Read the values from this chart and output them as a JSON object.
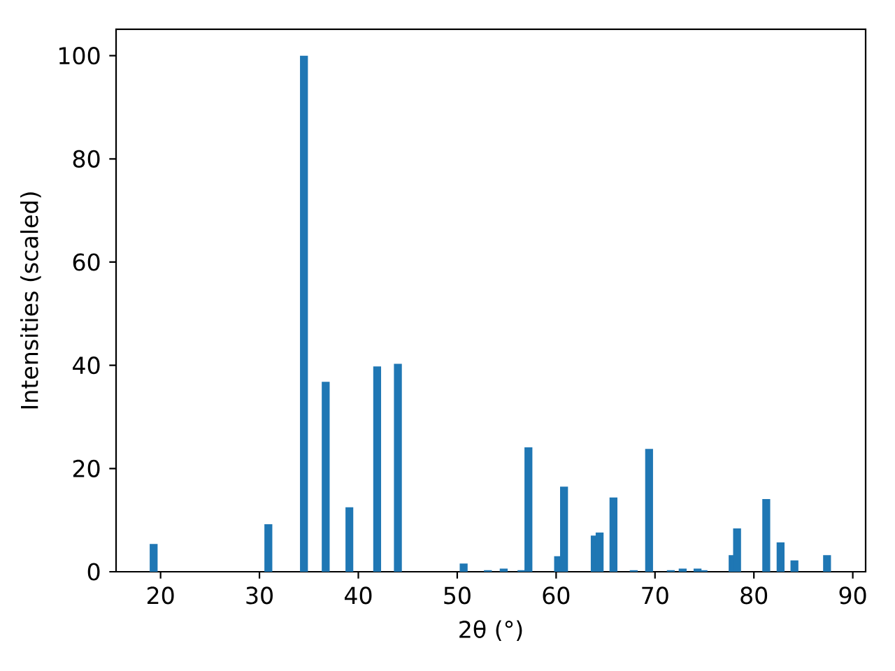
{
  "chart_data": {
    "type": "bar",
    "xlabel": "2θ (°)",
    "ylabel": "Intensities (scaled)",
    "x": [
      19.3,
      30.9,
      34.5,
      36.7,
      39.1,
      41.9,
      44.0,
      50.65,
      53.1,
      54.7,
      56.5,
      57.2,
      60.2,
      60.8,
      63.9,
      64.4,
      65.8,
      67.85,
      69.4,
      71.6,
      72.8,
      74.3,
      74.9,
      77.85,
      78.3,
      81.25,
      82.7,
      84.1,
      87.4
    ],
    "values": [
      5.4,
      9.2,
      100,
      36.8,
      12.5,
      39.8,
      40.3,
      1.6,
      0.3,
      0.6,
      0.3,
      24.1,
      3.0,
      16.5,
      7.0,
      7.6,
      14.4,
      0.3,
      23.8,
      0.3,
      0.6,
      0.6,
      0.3,
      3.2,
      8.4,
      14.1,
      5.7,
      2.2,
      3.2
    ],
    "color": "#1f77b4",
    "xlim": [
      15.5,
      91.3
    ],
    "ylim": [
      0,
      105.1
    ],
    "xticks": [
      20,
      30,
      40,
      50,
      60,
      70,
      80,
      90
    ],
    "yticks": [
      0,
      20,
      40,
      60,
      80,
      100
    ]
  }
}
